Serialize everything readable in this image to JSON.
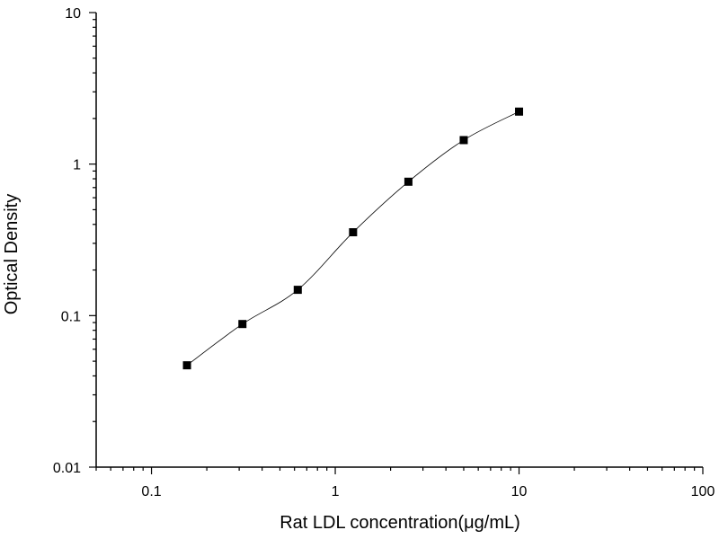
{
  "chart_data": {
    "type": "scatter",
    "title": "",
    "xlabel": "Rat LDL concentration(μg/mL)",
    "ylabel": "Optical Density",
    "x_scale": "log",
    "y_scale": "log",
    "xlim": [
      0.05,
      100
    ],
    "ylim": [
      0.01,
      10
    ],
    "x_ticks": [
      {
        "value": 0.1,
        "label": "0.1"
      },
      {
        "value": 1,
        "label": "1"
      },
      {
        "value": 10,
        "label": "10"
      },
      {
        "value": 100,
        "label": "100"
      }
    ],
    "y_ticks": [
      {
        "value": 0.01,
        "label": "0.01"
      },
      {
        "value": 0.1,
        "label": "0.1"
      },
      {
        "value": 1,
        "label": "1"
      },
      {
        "value": 10,
        "label": "10"
      }
    ],
    "grid": false,
    "legend": "none",
    "fit_curve": true,
    "marker": "square",
    "color": "#000000",
    "series": [
      {
        "x": [
          0.156,
          0.3125,
          0.625,
          1.25,
          2.5,
          5,
          10
        ],
        "y": [
          0.047,
          0.088,
          0.148,
          0.355,
          0.765,
          1.44,
          2.22
        ]
      }
    ]
  }
}
